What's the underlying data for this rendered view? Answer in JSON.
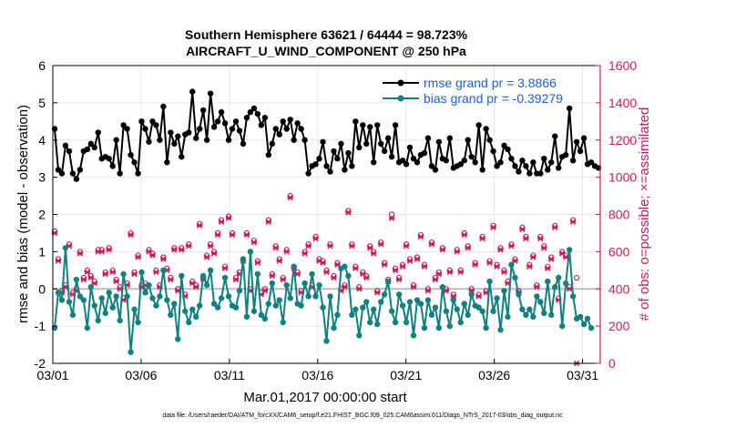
{
  "chart_data": {
    "type": "line",
    "title_line1": "Southern Hemisphere 63621 / 64444 = 98.723%",
    "title_line2": "AIRCRAFT_U_WIND_COMPONENT @ 250 hPa",
    "xlabel": "Mar.01,2017 00:00:00 start",
    "ylabel_left": "rmse and bias (model - observation)",
    "ylabel_right": "# of obs: o=possible; ×=assimilated",
    "x_range_days": [
      0,
      31
    ],
    "ylim_left": [
      -2,
      6
    ],
    "ylim_right": [
      0,
      1600
    ],
    "x_ticks": [
      {
        "day": 0,
        "label": "03/01"
      },
      {
        "day": 5,
        "label": "03/06"
      },
      {
        "day": 10,
        "label": "03/11"
      },
      {
        "day": 15,
        "label": "03/16"
      },
      {
        "day": 20,
        "label": "03/21"
      },
      {
        "day": 25,
        "label": "03/26"
      },
      {
        "day": 30,
        "label": "03/31"
      }
    ],
    "y_ticks_left": [
      "-2",
      "-1",
      "0",
      "1",
      "2",
      "3",
      "4",
      "5",
      "6"
    ],
    "y_ticks_right": [
      "0",
      "200",
      "400",
      "600",
      "800",
      "1000",
      "1200",
      "1400",
      "1600"
    ],
    "colors": {
      "rmse": "#000000",
      "bias": "#118080",
      "obs": "#cc1a5e",
      "zero_line": "#bdbdbd",
      "grid": "#e6e6e6",
      "legend_text": "#1f5fd6"
    },
    "legend": {
      "rmse_label": "rmse grand pr = 3.8866",
      "bias_label": "bias grand pr = -0.39279"
    },
    "series": [
      {
        "name": "rmse",
        "values": [
          4.3,
          3.2,
          3.1,
          3.85,
          3.7,
          3.1,
          2.95,
          3.2,
          3.7,
          3.75,
          3.9,
          3.8,
          4.2,
          3.5,
          3.55,
          3.5,
          3.3,
          4.0,
          3.1,
          4.4,
          4.3,
          3.6,
          3.4,
          3.1,
          4.5,
          4.3,
          3.95,
          4.5,
          4.4,
          4.0,
          4.9,
          3.4,
          4.2,
          3.9,
          4.1,
          3.55,
          4.15,
          4.2,
          5.3,
          4.05,
          4.3,
          4.8,
          4.0,
          5.25,
          4.35,
          4.5,
          4.75,
          4.45,
          4.0,
          4.3,
          4.5,
          4.25,
          3.9,
          4.6,
          4.75,
          4.85,
          4.7,
          4.4,
          4.6,
          3.6,
          3.9,
          4.3,
          4.15,
          4.5,
          4.3,
          4.55,
          4.0,
          4.45,
          4.3,
          4.0,
          3.1,
          3.3,
          3.35,
          3.5,
          3.95,
          3.3,
          3.15,
          3.7,
          3.5,
          3.9,
          3.2,
          3.65,
          3.3,
          4.5,
          3.8,
          4.4,
          3.9,
          4.35,
          3.4,
          4.4,
          3.9,
          3.7,
          4.05,
          3.55,
          4.4,
          3.4,
          3.45,
          3.35,
          3.8,
          3.5,
          3.4,
          3.6,
          3.65,
          4.05,
          3.3,
          3.2,
          3.95,
          3.5,
          3.45,
          4.05,
          3.25,
          3.3,
          3.35,
          3.45,
          4.0,
          3.55,
          3.4,
          4.4,
          3.2,
          4.3,
          4.0,
          3.7,
          3.3,
          3.4,
          3.85,
          3.75,
          3.5,
          3.3,
          3.15,
          3.45,
          3.3,
          3.1,
          3.4,
          3.1,
          3.1,
          3.5,
          3.2,
          3.4,
          4.1,
          3.25,
          3.55,
          3.6,
          4.85,
          3.45,
          3.95,
          3.7,
          4.05,
          3.35,
          3.4,
          3.3,
          3.25
        ]
      },
      {
        "name": "bias",
        "values": [
          -1.05,
          -0.1,
          -0.3,
          1.1,
          -0.35,
          -0.7,
          0.25,
          -0.2,
          -0.3,
          -1.05,
          0.05,
          -0.45,
          -0.85,
          -0.25,
          -0.65,
          -0.1,
          -0.5,
          -0.2,
          -0.85,
          0.4,
          -0.2,
          -1.7,
          -0.55,
          -0.9,
          0.45,
          -0.1,
          0.1,
          -0.25,
          -0.45,
          -0.2,
          0.5,
          -0.3,
          -0.7,
          -0.4,
          -1.35,
          0.35,
          -0.6,
          -0.9,
          -0.55,
          -0.75,
          -0.45,
          0.35,
          0.1,
          0.5,
          -0.4,
          -0.5,
          -0.25,
          0.3,
          -0.2,
          -0.45,
          -0.5,
          -0.05,
          0.8,
          -0.75,
          1.0,
          -0.6,
          0.4,
          -0.7,
          -0.8,
          -0.4,
          0.15,
          -0.45,
          -0.3,
          -0.9,
          0.1,
          -0.25,
          0.6,
          -0.4,
          -0.45,
          0.15,
          -0.2,
          0.4,
          -0.2,
          0.1,
          -0.5,
          -1.4,
          -0.2,
          -1.05,
          -0.7,
          0.55,
          0.6,
          0.35,
          -0.7,
          -0.55,
          -1.25,
          -0.5,
          -0.35,
          -0.9,
          -0.55,
          -0.95,
          -0.35,
          -0.15,
          0.2,
          -0.6,
          -0.9,
          -0.15,
          -0.45,
          -0.9,
          -0.35,
          -1.25,
          -0.3,
          -0.4,
          -1.05,
          -0.3,
          -0.7,
          -0.5,
          -1.05,
          0.05,
          -0.6,
          -1.0,
          -0.3,
          -0.55,
          -0.9,
          -0.4,
          -0.7,
          -0.15,
          -0.45,
          -0.5,
          -0.6,
          -1.05,
          0.2,
          -0.6,
          -0.25,
          -1.1,
          -0.05,
          -0.75,
          0.65,
          0.3,
          -0.15,
          -0.55,
          -0.7,
          -0.55,
          -0.75,
          -0.2,
          -0.35,
          -0.65,
          0.2,
          -0.7,
          0.05,
          0.3,
          -1.0,
          0.15,
          1.05,
          -0.2,
          -0.8,
          -0.75,
          -0.95,
          -0.8,
          -1.05
        ]
      },
      {
        "name": "obs_possible",
        "values": [
          710,
          560,
          390,
          420,
          640,
          380,
          400,
          600,
          460,
          500,
          470,
          440,
          610,
          610,
          490,
          620,
          500,
          450,
          410,
          350,
          430,
          700,
          490,
          580,
          420,
          430,
          610,
          590,
          500,
          420,
          570,
          510,
          460,
          620,
          400,
          620,
          370,
          640,
          440,
          420,
          750,
          460,
          580,
          640,
          600,
          700,
          770,
          520,
          790,
          700,
          460,
          490,
          560,
          700,
          400,
          660,
          550,
          380,
          400,
          770,
          480,
          630,
          560,
          460,
          610,
          900,
          520,
          490,
          390,
          600,
          640,
          420,
          680,
          560,
          550,
          500,
          640,
          470,
          540,
          400,
          420,
          820,
          640,
          520,
          410,
          490,
          470,
          630,
          600,
          390,
          650,
          540,
          450,
          800,
          510,
          460,
          530,
          640,
          560,
          420,
          570,
          690,
          530,
          400,
          650,
          460,
          490,
          620,
          400,
          500,
          370,
          610,
          500,
          700,
          630,
          400,
          540,
          370,
          680,
          390,
          550,
          740,
          530,
          620,
          500,
          440,
          640,
          560,
          390,
          730,
          680,
          530,
          580,
          420,
          680,
          630,
          520,
          570,
          740,
          350,
          600,
          580,
          410,
          770,
          460
        ]
      },
      {
        "name": "obs_assimilated",
        "values": [
          700,
          550,
          380,
          410,
          630,
          370,
          390,
          590,
          450,
          490,
          460,
          430,
          600,
          600,
          480,
          610,
          490,
          440,
          400,
          340,
          420,
          690,
          480,
          570,
          410,
          420,
          600,
          580,
          490,
          410,
          560,
          500,
          450,
          610,
          390,
          610,
          360,
          630,
          430,
          410,
          740,
          450,
          570,
          630,
          590,
          690,
          760,
          510,
          780,
          690,
          450,
          480,
          550,
          690,
          390,
          650,
          540,
          370,
          390,
          760,
          470,
          620,
          550,
          450,
          600,
          890,
          510,
          480,
          380,
          590,
          630,
          410,
          670,
          550,
          540,
          490,
          630,
          460,
          530,
          390,
          410,
          810,
          630,
          510,
          400,
          480,
          460,
          620,
          590,
          380,
          640,
          530,
          440,
          780,
          500,
          450,
          520,
          630,
          550,
          410,
          560,
          680,
          520,
          390,
          640,
          450,
          480,
          610,
          390,
          490,
          360,
          600,
          490,
          690,
          620,
          390,
          530,
          360,
          670,
          380,
          540,
          730,
          520,
          610,
          490,
          430,
          630,
          550,
          380,
          720,
          670,
          520,
          570,
          410,
          670,
          620,
          510,
          560,
          730,
          340,
          590,
          570,
          400,
          760,
          0
        ]
      }
    ]
  },
  "footer_text": "data file: /Users/raeder/DAI/ATM_forcXX/CAM6_setup/f.e21.FHIST_BGC.f09_025.CAM6assim.011/Diags_NTrS_2017-03/obs_diag_output.nc"
}
